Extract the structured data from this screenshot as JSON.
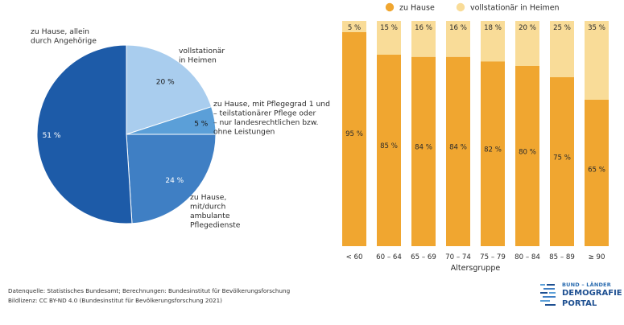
{
  "chart_data": [
    {
      "type": "pie",
      "slices": [
        {
          "label": "zu Hause, allein durch Angehörige",
          "label_lines": [
            "zu Hause, allein",
            "durch Angehörige"
          ],
          "value": 51,
          "value_label": "51 %",
          "color": "#1d5ba8"
        },
        {
          "label": "vollstationär in Heimen",
          "label_lines": [
            "vollstationär",
            "in Heimen"
          ],
          "value": 20,
          "value_label": "20 %",
          "color": "#a9cdee"
        },
        {
          "label": "zu Hause, mit Pflegegrad 1 und – teilstationärer Pflege oder – nur landesrechtlichen bzw. ohne Leistungen",
          "label_lines": [
            "zu Hause, mit Pflegegrad 1 und",
            "– teilstationärer Pflege oder",
            "– nur landesrechtlichen bzw.",
            "ohne Leistungen"
          ],
          "value": 5,
          "value_label": "5 %",
          "color": "#5b9fd8"
        },
        {
          "label": "zu Hause, mit/durch ambulante Pflegedienste",
          "label_lines": [
            "zu Hause,",
            "mit/durch",
            "ambulante",
            "Pflegedienste"
          ],
          "value": 24,
          "value_label": "24 %",
          "color": "#3f7fc4"
        }
      ]
    },
    {
      "type": "bar",
      "stacked": true,
      "xlabel": "Altersgruppe",
      "categories": [
        "< 60",
        "60 – 64",
        "65 – 69",
        "70 – 74",
        "75 – 79",
        "80 – 84",
        "85 – 89",
        "≥ 90"
      ],
      "ylim": [
        0,
        100
      ],
      "legend_position": "top",
      "series": [
        {
          "name": "zu Hause",
          "color": "#f0a630",
          "values": [
            95,
            85,
            84,
            84,
            82,
            80,
            75,
            65
          ],
          "value_labels": [
            "95 %",
            "85 %",
            "84 %",
            "84 %",
            "82 %",
            "80 %",
            "75 %",
            "65 %"
          ]
        },
        {
          "name": "vollstationär in Heimen",
          "color": "#f9dc98",
          "values": [
            5,
            15,
            16,
            16,
            18,
            20,
            25,
            35
          ],
          "value_labels": [
            "5 %",
            "15 %",
            "16 %",
            "16 %",
            "18 %",
            "20 %",
            "25 %",
            "35 %"
          ]
        }
      ]
    }
  ],
  "footer": {
    "source": "Datenquelle: Statistisches Bundesamt; Berechnungen: Bundesinstitut für Bevölkerungsforschung",
    "license": "Bildlizenz: CC BY-ND 4.0 (Bundesinstitut für Bevölkerungsforschung 2021)"
  },
  "logo": {
    "top": "BUND – LÄNDER",
    "line1": "DEMOGRAFIE",
    "line2": "PORTAL",
    "color": "#1d4f91"
  }
}
